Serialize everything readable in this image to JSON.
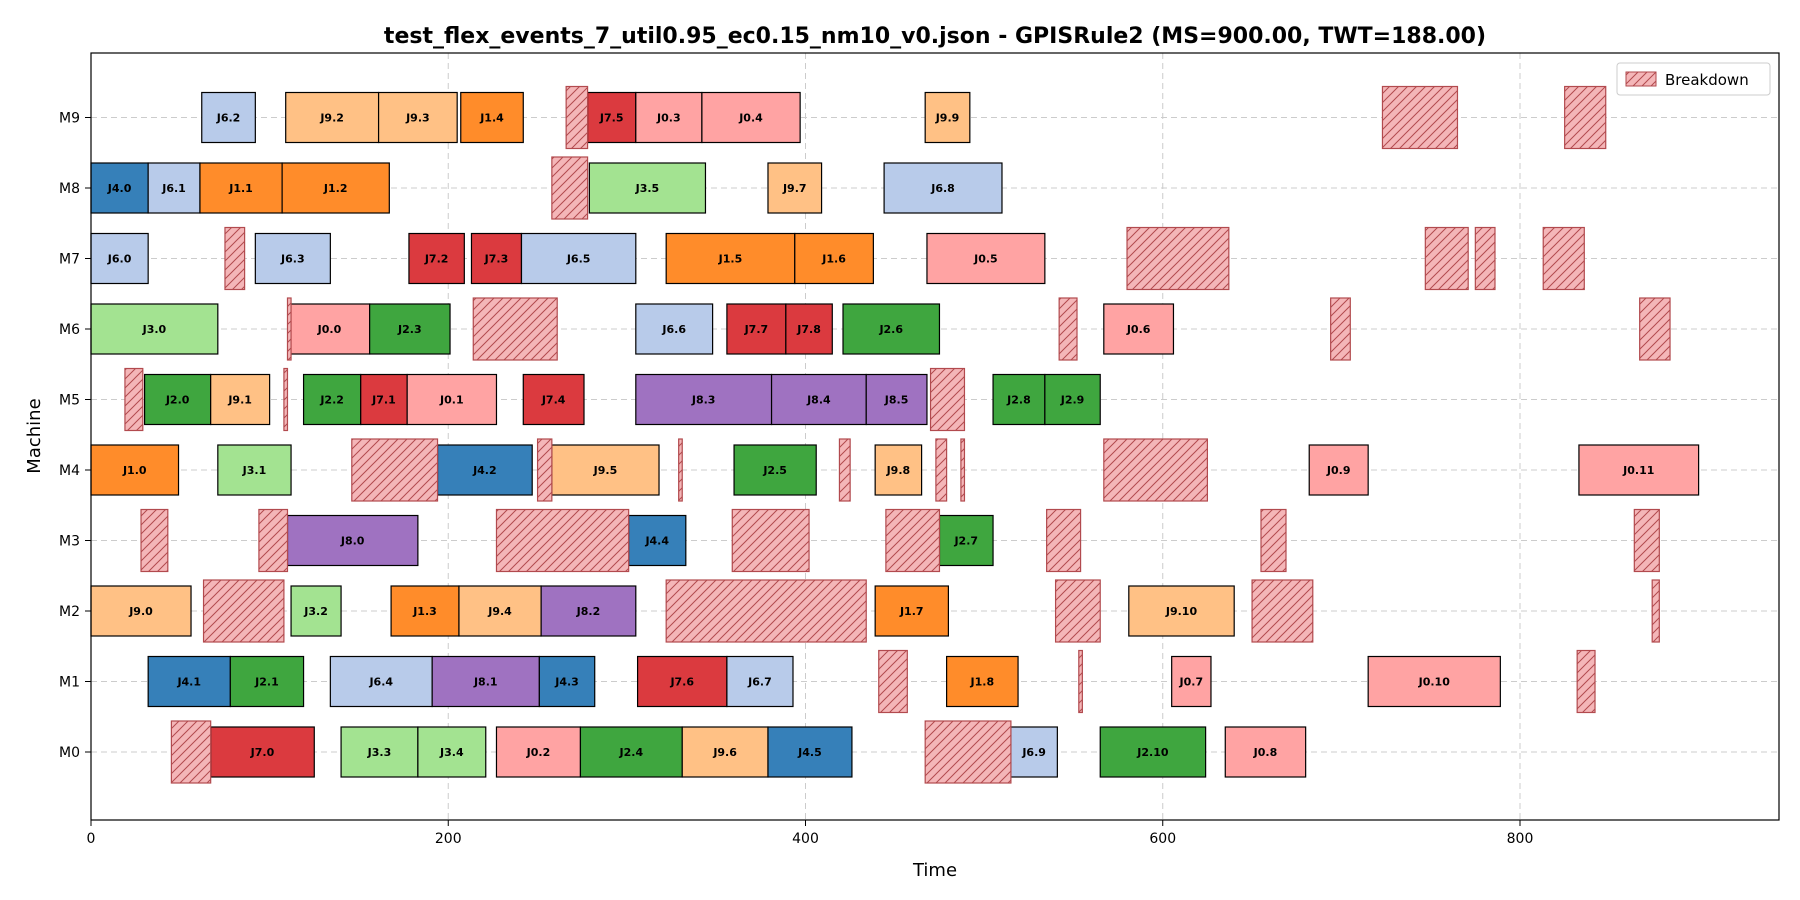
{
  "chart_data": {
    "type": "gantt",
    "title": "test_flex_events_7_util0.95_ec0.15_nm10_v0.json - GPISRule2 (MS=900.00, TWT=188.00)",
    "xlabel": "Time",
    "ylabel": "Machine",
    "xlim": [
      0,
      945
    ],
    "x_ticks": [
      0,
      200,
      400,
      600,
      800
    ],
    "x_tick_labels": [
      "0",
      "200",
      "400",
      "600",
      "800"
    ],
    "machines": [
      "M0",
      "M1",
      "M2",
      "M3",
      "M4",
      "M5",
      "M6",
      "M7",
      "M8",
      "M9"
    ],
    "grid": "dashed",
    "legend": {
      "position": "top-right",
      "entries": [
        {
          "label": "Breakdown"
        }
      ]
    },
    "job_colors": {
      "J0": "#ffa3a3",
      "J1": "#ff8c2a",
      "J2": "#3fa63f",
      "J3": "#a3e391",
      "J4": "#3680b9",
      "J6": "#b8cbea",
      "J7": "#db3a3f",
      "J8": "#9f72c1",
      "J9": "#ffc185"
    },
    "breakdown_color": "#f4b6b8",
    "breakdown_edge": "#b24a4e",
    "operations": [
      {
        "m": "M0",
        "s": 67,
        "e": 125,
        "label": "J7.0",
        "job": "J7"
      },
      {
        "m": "M0",
        "s": 140,
        "e": 183,
        "label": "J3.3",
        "job": "J3"
      },
      {
        "m": "M0",
        "s": 183,
        "e": 221,
        "label": "J3.4",
        "job": "J3"
      },
      {
        "m": "M0",
        "s": 227,
        "e": 274,
        "label": "J0.2",
        "job": "J0"
      },
      {
        "m": "M0",
        "s": 274,
        "e": 331,
        "label": "J2.4",
        "job": "J2"
      },
      {
        "m": "M0",
        "s": 331,
        "e": 379,
        "label": "J9.6",
        "job": "J9"
      },
      {
        "m": "M0",
        "s": 379,
        "e": 426,
        "label": "J4.5",
        "job": "J4"
      },
      {
        "m": "M0",
        "s": 515,
        "e": 541,
        "label": "J6.9",
        "job": "J6"
      },
      {
        "m": "M0",
        "s": 565,
        "e": 624,
        "label": "J2.10",
        "job": "J2"
      },
      {
        "m": "M0",
        "s": 635,
        "e": 680,
        "label": "J0.8",
        "job": "J0"
      },
      {
        "m": "M1",
        "s": 32,
        "e": 78,
        "label": "J4.1",
        "job": "J4"
      },
      {
        "m": "M1",
        "s": 78,
        "e": 119,
        "label": "J2.1",
        "job": "J2"
      },
      {
        "m": "M1",
        "s": 134,
        "e": 191,
        "label": "J6.4",
        "job": "J6"
      },
      {
        "m": "M1",
        "s": 191,
        "e": 251,
        "label": "J8.1",
        "job": "J8"
      },
      {
        "m": "M1",
        "s": 251,
        "e": 282,
        "label": "J4.3",
        "job": "J4"
      },
      {
        "m": "M1",
        "s": 306,
        "e": 356,
        "label": "J7.6",
        "job": "J7"
      },
      {
        "m": "M1",
        "s": 356,
        "e": 393,
        "label": "J6.7",
        "job": "J6"
      },
      {
        "m": "M1",
        "s": 479,
        "e": 519,
        "label": "J1.8",
        "job": "J1"
      },
      {
        "m": "M1",
        "s": 605,
        "e": 627,
        "label": "J0.7",
        "job": "J0"
      },
      {
        "m": "M1",
        "s": 715,
        "e": 789,
        "label": "J0.10",
        "job": "J0"
      },
      {
        "m": "M2",
        "s": 0,
        "e": 56,
        "label": "J9.0",
        "job": "J9"
      },
      {
        "m": "M2",
        "s": 112,
        "e": 140,
        "label": "J3.2",
        "job": "J3"
      },
      {
        "m": "M2",
        "s": 168,
        "e": 206,
        "label": "J1.3",
        "job": "J1"
      },
      {
        "m": "M2",
        "s": 206,
        "e": 252,
        "label": "J9.4",
        "job": "J9"
      },
      {
        "m": "M2",
        "s": 252,
        "e": 305,
        "label": "J8.2",
        "job": "J8"
      },
      {
        "m": "M2",
        "s": 439,
        "e": 480,
        "label": "J1.7",
        "job": "J1"
      },
      {
        "m": "M2",
        "s": 581,
        "e": 640,
        "label": "J9.10",
        "job": "J9"
      },
      {
        "m": "M3",
        "s": 110,
        "e": 183,
        "label": "J8.0",
        "job": "J8"
      },
      {
        "m": "M3",
        "s": 301,
        "e": 333,
        "label": "J4.4",
        "job": "J4"
      },
      {
        "m": "M3",
        "s": 475,
        "e": 505,
        "label": "J2.7",
        "job": "J2"
      },
      {
        "m": "M4",
        "s": 0,
        "e": 49,
        "label": "J1.0",
        "job": "J1"
      },
      {
        "m": "M4",
        "s": 71,
        "e": 112,
        "label": "J3.1",
        "job": "J3"
      },
      {
        "m": "M4",
        "s": 194,
        "e": 247,
        "label": "J4.2",
        "job": "J4"
      },
      {
        "m": "M4",
        "s": 258,
        "e": 318,
        "label": "J9.5",
        "job": "J9"
      },
      {
        "m": "M4",
        "s": 360,
        "e": 406,
        "label": "J2.5",
        "job": "J2"
      },
      {
        "m": "M4",
        "s": 439,
        "e": 465,
        "label": "J9.8",
        "job": "J9"
      },
      {
        "m": "M4",
        "s": 682,
        "e": 715,
        "label": "J0.9",
        "job": "J0"
      },
      {
        "m": "M4",
        "s": 833,
        "e": 900,
        "label": "J0.11",
        "job": "J0"
      },
      {
        "m": "M5",
        "s": 30,
        "e": 67,
        "label": "J2.0",
        "job": "J2"
      },
      {
        "m": "M5",
        "s": 67,
        "e": 100,
        "label": "J9.1",
        "job": "J9"
      },
      {
        "m": "M5",
        "s": 119,
        "e": 151,
        "label": "J2.2",
        "job": "J2"
      },
      {
        "m": "M5",
        "s": 151,
        "e": 177,
        "label": "J7.1",
        "job": "J7"
      },
      {
        "m": "M5",
        "s": 177,
        "e": 227,
        "label": "J0.1",
        "job": "J0"
      },
      {
        "m": "M5",
        "s": 242,
        "e": 276,
        "label": "J7.4",
        "job": "J7"
      },
      {
        "m": "M5",
        "s": 305,
        "e": 381,
        "label": "J8.3",
        "job": "J8"
      },
      {
        "m": "M5",
        "s": 381,
        "e": 434,
        "label": "J8.4",
        "job": "J8"
      },
      {
        "m": "M5",
        "s": 434,
        "e": 468,
        "label": "J8.5",
        "job": "J8"
      },
      {
        "m": "M5",
        "s": 505,
        "e": 534,
        "label": "J2.8",
        "job": "J2"
      },
      {
        "m": "M5",
        "s": 534,
        "e": 565,
        "label": "J2.9",
        "job": "J2"
      },
      {
        "m": "M6",
        "s": 0,
        "e": 71,
        "label": "J3.0",
        "job": "J3"
      },
      {
        "m": "M6",
        "s": 111,
        "e": 156,
        "label": "J0.0",
        "job": "J0"
      },
      {
        "m": "M6",
        "s": 156,
        "e": 201,
        "label": "J2.3",
        "job": "J2"
      },
      {
        "m": "M6",
        "s": 305,
        "e": 348,
        "label": "J6.6",
        "job": "J6"
      },
      {
        "m": "M6",
        "s": 356,
        "e": 389,
        "label": "J7.7",
        "job": "J7"
      },
      {
        "m": "M6",
        "s": 389,
        "e": 415,
        "label": "J7.8",
        "job": "J7"
      },
      {
        "m": "M6",
        "s": 421,
        "e": 475,
        "label": "J2.6",
        "job": "J2"
      },
      {
        "m": "M6",
        "s": 567,
        "e": 606,
        "label": "J0.6",
        "job": "J0"
      },
      {
        "m": "M7",
        "s": 0,
        "e": 32,
        "label": "J6.0",
        "job": "J6"
      },
      {
        "m": "M7",
        "s": 92,
        "e": 134,
        "label": "J6.3",
        "job": "J6"
      },
      {
        "m": "M7",
        "s": 178,
        "e": 209,
        "label": "J7.2",
        "job": "J7"
      },
      {
        "m": "M7",
        "s": 213,
        "e": 241,
        "label": "J7.3",
        "job": "J7"
      },
      {
        "m": "M7",
        "s": 241,
        "e": 305,
        "label": "J6.5",
        "job": "J6"
      },
      {
        "m": "M7",
        "s": 322,
        "e": 394,
        "label": "J1.5",
        "job": "J1"
      },
      {
        "m": "M7",
        "s": 394,
        "e": 438,
        "label": "J1.6",
        "job": "J1"
      },
      {
        "m": "M7",
        "s": 468,
        "e": 534,
        "label": "J0.5",
        "job": "J0"
      },
      {
        "m": "M8",
        "s": 0,
        "e": 32,
        "label": "J4.0",
        "job": "J4"
      },
      {
        "m": "M8",
        "s": 32,
        "e": 61,
        "label": "J6.1",
        "job": "J6"
      },
      {
        "m": "M8",
        "s": 61,
        "e": 107,
        "label": "J1.1",
        "job": "J1"
      },
      {
        "m": "M8",
        "s": 107,
        "e": 167,
        "label": "J1.2",
        "job": "J1"
      },
      {
        "m": "M8",
        "s": 279,
        "e": 344,
        "label": "J3.5",
        "job": "J3"
      },
      {
        "m": "M8",
        "s": 379,
        "e": 409,
        "label": "J9.7",
        "job": "J9"
      },
      {
        "m": "M8",
        "s": 444,
        "e": 510,
        "label": "J6.8",
        "job": "J6"
      },
      {
        "m": "M9",
        "s": 62,
        "e": 92,
        "label": "J6.2",
        "job": "J6"
      },
      {
        "m": "M9",
        "s": 109,
        "e": 161,
        "label": "J9.2",
        "job": "J9"
      },
      {
        "m": "M9",
        "s": 161,
        "e": 205,
        "label": "J9.3",
        "job": "J9"
      },
      {
        "m": "M9",
        "s": 207,
        "e": 242,
        "label": "J1.4",
        "job": "J1"
      },
      {
        "m": "M9",
        "s": 278,
        "e": 305,
        "label": "J7.5",
        "job": "J7"
      },
      {
        "m": "M9",
        "s": 305,
        "e": 342,
        "label": "J0.3",
        "job": "J0"
      },
      {
        "m": "M9",
        "s": 342,
        "e": 397,
        "label": "J0.4",
        "job": "J0"
      },
      {
        "m": "M9",
        "s": 467,
        "e": 492,
        "label": "J9.9",
        "job": "J9"
      }
    ],
    "breakdowns": [
      {
        "m": "M0",
        "s": 45,
        "e": 67
      },
      {
        "m": "M0",
        "s": 467,
        "e": 515
      },
      {
        "m": "M1",
        "s": 441,
        "e": 457
      },
      {
        "m": "M1",
        "s": 553,
        "e": 555
      },
      {
        "m": "M1",
        "s": 832,
        "e": 842
      },
      {
        "m": "M2",
        "s": 63,
        "e": 108
      },
      {
        "m": "M2",
        "s": 322,
        "e": 434
      },
      {
        "m": "M2",
        "s": 540,
        "e": 565
      },
      {
        "m": "M2",
        "s": 650,
        "e": 684
      },
      {
        "m": "M2",
        "s": 874,
        "e": 878
      },
      {
        "m": "M3",
        "s": 28,
        "e": 43
      },
      {
        "m": "M3",
        "s": 94,
        "e": 110
      },
      {
        "m": "M3",
        "s": 227,
        "e": 301
      },
      {
        "m": "M3",
        "s": 359,
        "e": 402
      },
      {
        "m": "M3",
        "s": 445,
        "e": 475
      },
      {
        "m": "M3",
        "s": 535,
        "e": 554
      },
      {
        "m": "M3",
        "s": 655,
        "e": 669
      },
      {
        "m": "M3",
        "s": 864,
        "e": 878
      },
      {
        "m": "M4",
        "s": 146,
        "e": 194
      },
      {
        "m": "M4",
        "s": 250,
        "e": 258
      },
      {
        "m": "M4",
        "s": 329,
        "e": 331
      },
      {
        "m": "M4",
        "s": 419,
        "e": 425
      },
      {
        "m": "M4",
        "s": 473,
        "e": 479
      },
      {
        "m": "M4",
        "s": 487,
        "e": 489
      },
      {
        "m": "M4",
        "s": 567,
        "e": 625
      },
      {
        "m": "M5",
        "s": 19,
        "e": 29
      },
      {
        "m": "M5",
        "s": 108,
        "e": 110
      },
      {
        "m": "M5",
        "s": 470,
        "e": 489
      },
      {
        "m": "M6",
        "s": 110,
        "e": 112
      },
      {
        "m": "M6",
        "s": 214,
        "e": 261
      },
      {
        "m": "M6",
        "s": 542,
        "e": 552
      },
      {
        "m": "M6",
        "s": 694,
        "e": 705
      },
      {
        "m": "M6",
        "s": 867,
        "e": 884
      },
      {
        "m": "M7",
        "s": 75,
        "e": 86
      },
      {
        "m": "M7",
        "s": 580,
        "e": 637
      },
      {
        "m": "M7",
        "s": 747,
        "e": 771
      },
      {
        "m": "M7",
        "s": 775,
        "e": 786
      },
      {
        "m": "M7",
        "s": 813,
        "e": 836
      },
      {
        "m": "M8",
        "s": 258,
        "e": 278
      },
      {
        "m": "M9",
        "s": 266,
        "e": 278
      },
      {
        "m": "M9",
        "s": 723,
        "e": 765
      },
      {
        "m": "M9",
        "s": 825,
        "e": 848
      }
    ]
  }
}
